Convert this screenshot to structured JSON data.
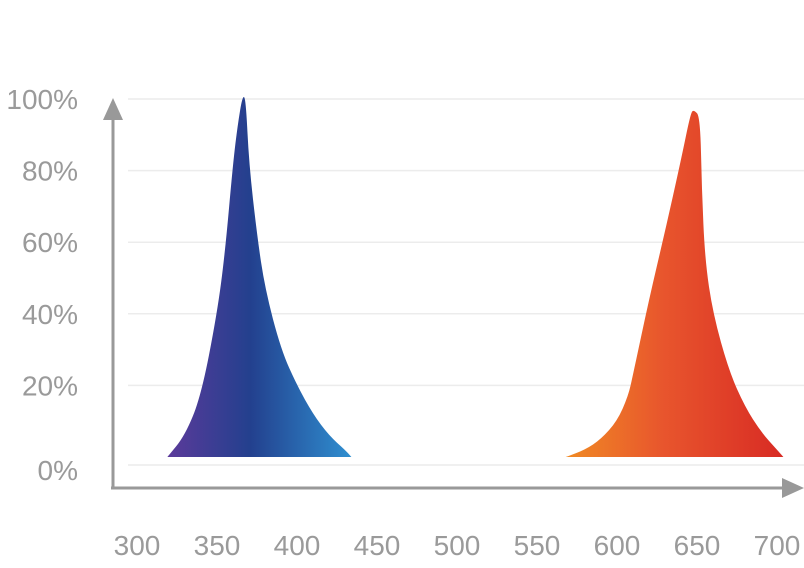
{
  "chart_data": {
    "type": "area",
    "title": "",
    "xlabel": "",
    "ylabel": "",
    "xlim": [
      300,
      700
    ],
    "ylim": [
      0,
      100
    ],
    "x_ticks": [
      300,
      350,
      400,
      450,
      500,
      550,
      600,
      650,
      700
    ],
    "x_tick_labels": [
      "300",
      "350",
      "400",
      "450",
      "500",
      "550",
      "600",
      "650",
      "700"
    ],
    "y_ticks": [
      0,
      20,
      40,
      60,
      80,
      100
    ],
    "y_tick_labels": [
      "0%",
      "20%",
      "40%",
      "60%",
      "80%",
      "100%"
    ],
    "grid": true,
    "legend": "none",
    "series": [
      {
        "color_start": "#5b3a9a",
        "color_mid": "#23408e",
        "color_end": "#2f8fd0",
        "points": [
          [
            319,
            0
          ],
          [
            330,
            6
          ],
          [
            340,
            17
          ],
          [
            350,
            40
          ],
          [
            355,
            57
          ],
          [
            360,
            82
          ],
          [
            363,
            93
          ],
          [
            366,
            101
          ],
          [
            368,
            100
          ],
          [
            370,
            82
          ],
          [
            375,
            62
          ],
          [
            380,
            47
          ],
          [
            390,
            30
          ],
          [
            400,
            20
          ],
          [
            410,
            12
          ],
          [
            420,
            6
          ],
          [
            430,
            2
          ],
          [
            434,
            0
          ]
        ]
      },
      {
        "color_start": "#f08a24",
        "color_mid": "#e8552d",
        "color_end": "#d82b24",
        "points": [
          [
            568,
            0
          ],
          [
            580,
            2
          ],
          [
            590,
            5
          ],
          [
            600,
            10
          ],
          [
            607,
            17
          ],
          [
            610,
            23
          ],
          [
            620,
            44
          ],
          [
            630,
            63
          ],
          [
            640,
            83
          ],
          [
            646,
            96
          ],
          [
            648,
            97
          ],
          [
            652,
            95
          ],
          [
            653,
            75
          ],
          [
            655,
            55
          ],
          [
            660,
            40
          ],
          [
            670,
            24
          ],
          [
            680,
            14
          ],
          [
            690,
            7
          ],
          [
            700,
            2
          ],
          [
            704,
            0
          ]
        ]
      }
    ]
  }
}
